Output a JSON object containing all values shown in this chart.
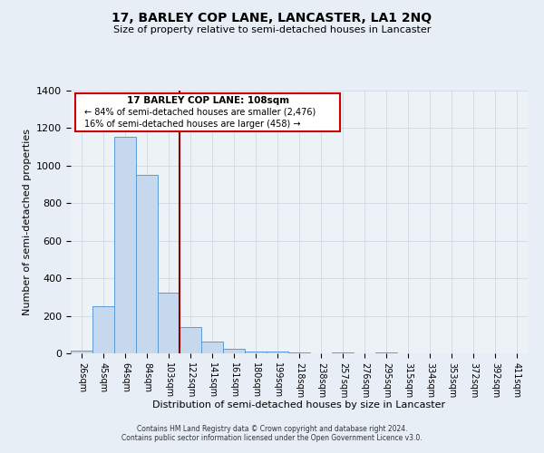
{
  "title": "17, BARLEY COP LANE, LANCASTER, LA1 2NQ",
  "subtitle": "Size of property relative to semi-detached houses in Lancaster",
  "xlabel": "Distribution of semi-detached houses by size in Lancaster",
  "ylabel": "Number of semi-detached properties",
  "bar_labels": [
    "26sqm",
    "45sqm",
    "64sqm",
    "84sqm",
    "103sqm",
    "122sqm",
    "141sqm",
    "161sqm",
    "180sqm",
    "199sqm",
    "218sqm",
    "238sqm",
    "257sqm",
    "276sqm",
    "295sqm",
    "315sqm",
    "334sqm",
    "353sqm",
    "372sqm",
    "392sqm",
    "411sqm"
  ],
  "bar_values": [
    15,
    250,
    1155,
    950,
    325,
    140,
    65,
    25,
    10,
    8,
    5,
    0,
    5,
    0,
    5,
    0,
    0,
    0,
    0,
    0,
    0
  ],
  "bar_color": "#c5d8ed",
  "bar_edge_color": "#5b9bd5",
  "vline_color": "#8b0000",
  "vline_index": 4.5,
  "ylim": [
    0,
    1400
  ],
  "yticks": [
    0,
    200,
    400,
    600,
    800,
    1000,
    1200,
    1400
  ],
  "annotation_title": "17 BARLEY COP LANE: 108sqm",
  "annotation_line1": "← 84% of semi-detached houses are smaller (2,476)",
  "annotation_line2": "16% of semi-detached houses are larger (458) →",
  "annotation_box_facecolor": "#ffffff",
  "annotation_box_edgecolor": "#cc0000",
  "footer1": "Contains HM Land Registry data © Crown copyright and database right 2024.",
  "footer2": "Contains public sector information licensed under the Open Government Licence v3.0.",
  "bg_color": "#e8eef5",
  "plot_bg_color": "#edf2f7",
  "grid_color": "#d0d8e4"
}
